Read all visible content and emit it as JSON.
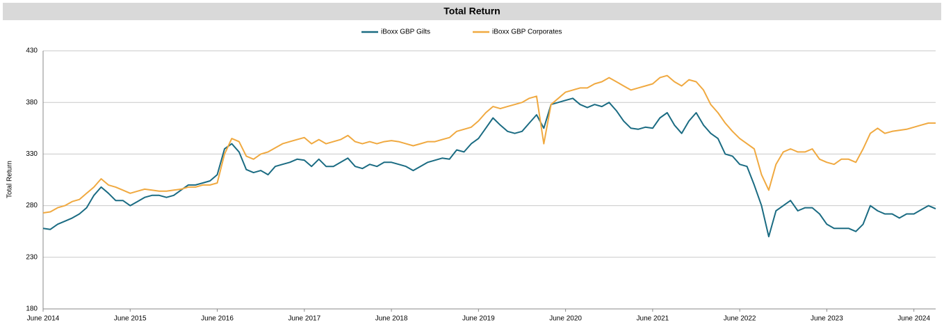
{
  "chart_data": {
    "type": "line",
    "title": "Total Return",
    "ylabel": "Total Return",
    "x": [
      "2014-06",
      "2014-07",
      "2014-08",
      "2014-09",
      "2014-10",
      "2014-11",
      "2014-12",
      "2015-01",
      "2015-02",
      "2015-03",
      "2015-04",
      "2015-05",
      "2015-06",
      "2015-07",
      "2015-08",
      "2015-09",
      "2015-10",
      "2015-11",
      "2015-12",
      "2016-01",
      "2016-02",
      "2016-03",
      "2016-04",
      "2016-05",
      "2016-06",
      "2016-07",
      "2016-08",
      "2016-09",
      "2016-10",
      "2016-11",
      "2016-12",
      "2017-01",
      "2017-02",
      "2017-03",
      "2017-04",
      "2017-05",
      "2017-06",
      "2017-07",
      "2017-08",
      "2017-09",
      "2017-10",
      "2017-11",
      "2017-12",
      "2018-01",
      "2018-02",
      "2018-03",
      "2018-04",
      "2018-05",
      "2018-06",
      "2018-07",
      "2018-08",
      "2018-09",
      "2018-10",
      "2018-11",
      "2018-12",
      "2019-01",
      "2019-02",
      "2019-03",
      "2019-04",
      "2019-05",
      "2019-06",
      "2019-07",
      "2019-08",
      "2019-09",
      "2019-10",
      "2019-11",
      "2019-12",
      "2020-01",
      "2020-02",
      "2020-03",
      "2020-04",
      "2020-05",
      "2020-06",
      "2020-07",
      "2020-08",
      "2020-09",
      "2020-10",
      "2020-11",
      "2020-12",
      "2021-01",
      "2021-02",
      "2021-03",
      "2021-04",
      "2021-05",
      "2021-06",
      "2021-07",
      "2021-08",
      "2021-09",
      "2021-10",
      "2021-11",
      "2021-12",
      "2022-01",
      "2022-02",
      "2022-03",
      "2022-04",
      "2022-05",
      "2022-06",
      "2022-07",
      "2022-08",
      "2022-09",
      "2022-10",
      "2022-11",
      "2022-12",
      "2023-01",
      "2023-02",
      "2023-03",
      "2023-04",
      "2023-05",
      "2023-06",
      "2023-07",
      "2023-08",
      "2023-09",
      "2023-10",
      "2023-11",
      "2023-12",
      "2024-01",
      "2024-02",
      "2024-03",
      "2024-04",
      "2024-05",
      "2024-06",
      "2024-07",
      "2024-08",
      "2024-09"
    ],
    "series": [
      {
        "name": "iBoxx GBP Gilts",
        "color": "#1a6b82",
        "values": [
          258,
          257,
          262,
          265,
          268,
          272,
          278,
          290,
          298,
          292,
          285,
          285,
          280,
          284,
          288,
          290,
          290,
          288,
          290,
          295,
          300,
          300,
          302,
          304,
          310,
          335,
          340,
          332,
          315,
          312,
          314,
          310,
          318,
          320,
          322,
          325,
          324,
          318,
          325,
          318,
          318,
          322,
          326,
          318,
          316,
          320,
          318,
          322,
          322,
          320,
          318,
          314,
          318,
          322,
          324,
          326,
          325,
          334,
          332,
          340,
          345,
          355,
          365,
          358,
          352,
          350,
          352,
          360,
          368,
          355,
          378,
          380,
          382,
          384,
          378,
          375,
          378,
          376,
          380,
          372,
          362,
          355,
          354,
          356,
          355,
          365,
          370,
          358,
          350,
          362,
          370,
          358,
          350,
          345,
          330,
          328,
          320,
          318,
          300,
          280,
          250,
          275,
          280,
          285,
          275,
          278,
          278,
          272,
          262,
          258,
          258,
          258,
          255,
          262,
          280,
          275,
          272,
          272,
          268,
          272,
          272,
          276,
          280,
          277
        ]
      },
      {
        "name": "iBoxx GBP Corporates",
        "color": "#f0a940",
        "values": [
          273,
          274,
          278,
          280,
          284,
          286,
          292,
          298,
          306,
          300,
          298,
          295,
          292,
          294,
          296,
          295,
          294,
          294,
          295,
          296,
          298,
          298,
          300,
          300,
          302,
          330,
          345,
          342,
          328,
          325,
          330,
          332,
          336,
          340,
          342,
          344,
          346,
          340,
          344,
          340,
          342,
          344,
          348,
          342,
          340,
          342,
          340,
          342,
          343,
          342,
          340,
          338,
          340,
          342,
          342,
          344,
          346,
          352,
          354,
          356,
          362,
          370,
          376,
          374,
          376,
          378,
          380,
          384,
          386,
          340,
          378,
          384,
          390,
          392,
          394,
          394,
          398,
          400,
          404,
          400,
          396,
          392,
          394,
          396,
          398,
          404,
          406,
          400,
          396,
          402,
          400,
          392,
          378,
          370,
          360,
          352,
          345,
          340,
          335,
          310,
          295,
          320,
          332,
          335,
          332,
          332,
          335,
          325,
          322,
          320,
          325,
          325,
          322,
          335,
          350,
          355,
          350,
          352,
          353,
          354,
          356,
          358,
          360,
          360
        ]
      }
    ],
    "xlim": [
      "2014-06",
      "2024-09"
    ],
    "xticks": [
      {
        "value": "2014-06",
        "label": "June 2014"
      },
      {
        "value": "2015-06",
        "label": "June 2015"
      },
      {
        "value": "2016-06",
        "label": "June 2016"
      },
      {
        "value": "2017-06",
        "label": "June 2017"
      },
      {
        "value": "2018-06",
        "label": "June 2018"
      },
      {
        "value": "2019-06",
        "label": "June 2019"
      },
      {
        "value": "2020-06",
        "label": "June 2020"
      },
      {
        "value": "2021-06",
        "label": "June 2021"
      },
      {
        "value": "2022-06",
        "label": "June 2022"
      },
      {
        "value": "2023-06",
        "label": "June 2023"
      },
      {
        "value": "2024-06",
        "label": "June 2024"
      }
    ],
    "ylim": [
      180,
      430
    ],
    "yticks": [
      180,
      230,
      280,
      330,
      380,
      430
    ],
    "grid": true,
    "legend": "top"
  }
}
